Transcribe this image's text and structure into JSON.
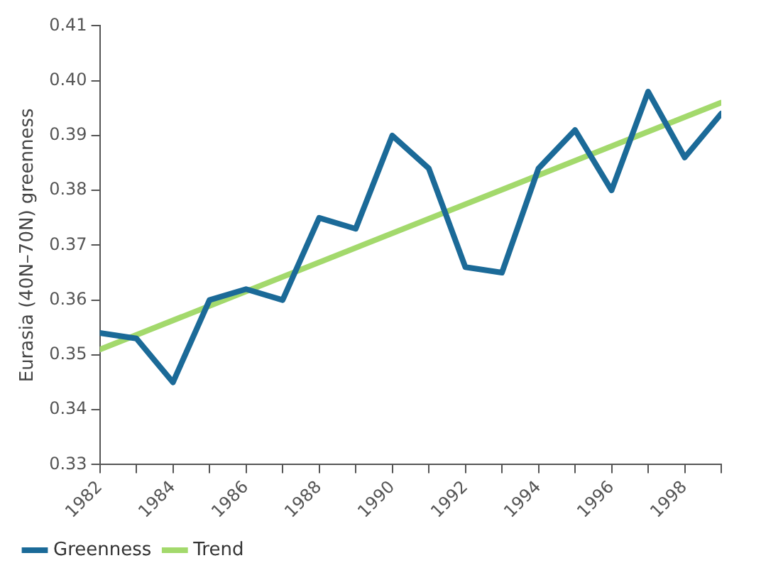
{
  "chart_data": {
    "type": "line",
    "ylabel": "Eurasia (40N–70N) greenness",
    "x": [
      1982,
      1983,
      1984,
      1985,
      1986,
      1987,
      1988,
      1989,
      1990,
      1991,
      1992,
      1993,
      1994,
      1995,
      1996,
      1997,
      1998,
      1999
    ],
    "series": [
      {
        "name": "Greenness",
        "color": "#1b6a98",
        "values": [
          0.354,
          0.353,
          0.345,
          0.36,
          0.362,
          0.36,
          0.375,
          0.373,
          0.39,
          0.384,
          0.366,
          0.365,
          0.384,
          0.391,
          0.38,
          0.398,
          0.386,
          0.394
        ]
      },
      {
        "name": "Trend",
        "color": "#a3d96c",
        "x": [
          1982,
          1999
        ],
        "values": [
          0.351,
          0.396
        ]
      }
    ],
    "xlim": [
      1982,
      1999
    ],
    "xticks": [
      1982,
      {
        "value": 1983,
        "label": null
      },
      1984,
      {
        "value": 1985,
        "label": null
      },
      1986,
      {
        "value": 1987,
        "label": null
      },
      1988,
      {
        "value": 1989,
        "label": null
      },
      1990,
      {
        "value": 1991,
        "label": null
      },
      1992,
      {
        "value": 1993,
        "label": null
      },
      1994,
      {
        "value": 1995,
        "label": null
      },
      1996,
      {
        "value": 1997,
        "label": null
      },
      1998,
      {
        "value": 1999,
        "label": null
      }
    ],
    "ylim": [
      0.33,
      0.41
    ],
    "yticks": [
      0.33,
      0.34,
      0.35,
      0.36,
      0.37,
      0.38,
      0.39,
      {
        "value": 0.4,
        "label": "0.40"
      },
      0.41
    ],
    "grid": false,
    "legend": "bottom",
    "marker": "none",
    "line_style": "solid"
  }
}
